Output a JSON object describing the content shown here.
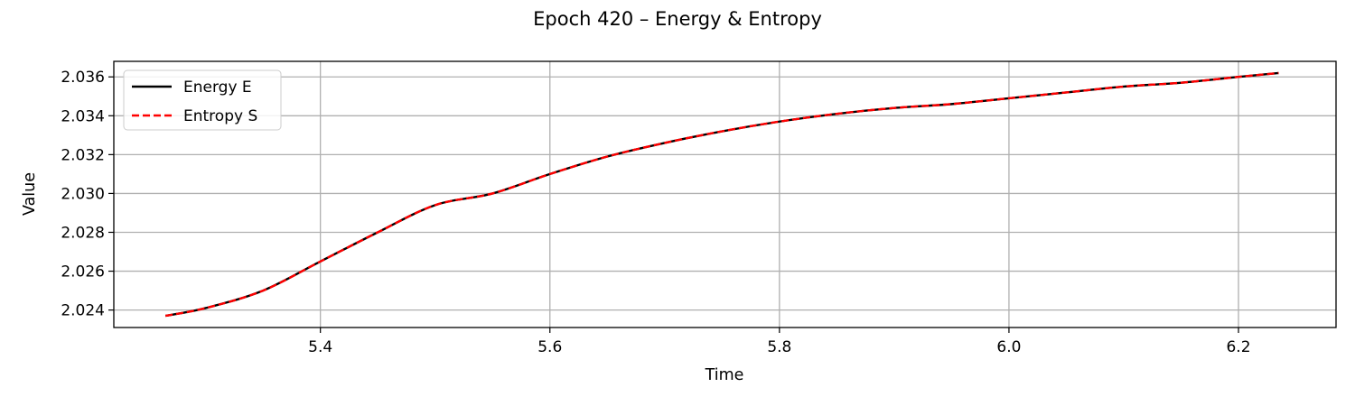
{
  "chart_data": {
    "type": "line",
    "title": "Epoch 420 – Energy & Entropy",
    "xlabel": "Time",
    "ylabel": "Value",
    "xlim": [
      5.22,
      6.285
    ],
    "ylim": [
      2.0231,
      2.0368
    ],
    "xticks": [
      5.4,
      5.6,
      5.8,
      6.0,
      6.2
    ],
    "xtick_labels": [
      "5.4",
      "5.6",
      "5.8",
      "6.0",
      "6.2"
    ],
    "yticks": [
      2.024,
      2.026,
      2.028,
      2.03,
      2.032,
      2.034,
      2.036
    ],
    "ytick_labels": [
      "2.024",
      "2.026",
      "2.028",
      "2.030",
      "2.032",
      "2.034",
      "2.036"
    ],
    "grid": true,
    "legend_position": "top-left",
    "x": [
      5.265,
      5.3,
      5.35,
      5.4,
      5.45,
      5.5,
      5.55,
      5.6,
      5.65,
      5.7,
      5.75,
      5.8,
      5.85,
      5.9,
      5.95,
      6.0,
      6.05,
      6.1,
      6.15,
      6.2,
      6.235
    ],
    "series": [
      {
        "name": "Energy E",
        "color": "#000000",
        "style": "solid",
        "values": [
          2.0237,
          2.0241,
          2.025,
          2.0265,
          2.028,
          2.0294,
          2.03,
          2.031,
          2.0319,
          2.0326,
          2.0332,
          2.0337,
          2.0341,
          2.0344,
          2.0346,
          2.0349,
          2.0352,
          2.0355,
          2.0357,
          2.036,
          2.0362
        ]
      },
      {
        "name": "Entropy S",
        "color": "#ff0000",
        "style": "dashed",
        "values": [
          2.0237,
          2.0241,
          2.025,
          2.0265,
          2.028,
          2.0294,
          2.03,
          2.031,
          2.0319,
          2.0326,
          2.0332,
          2.0337,
          2.0341,
          2.0344,
          2.0346,
          2.0349,
          2.0352,
          2.0355,
          2.0357,
          2.036,
          2.0362
        ]
      }
    ]
  }
}
